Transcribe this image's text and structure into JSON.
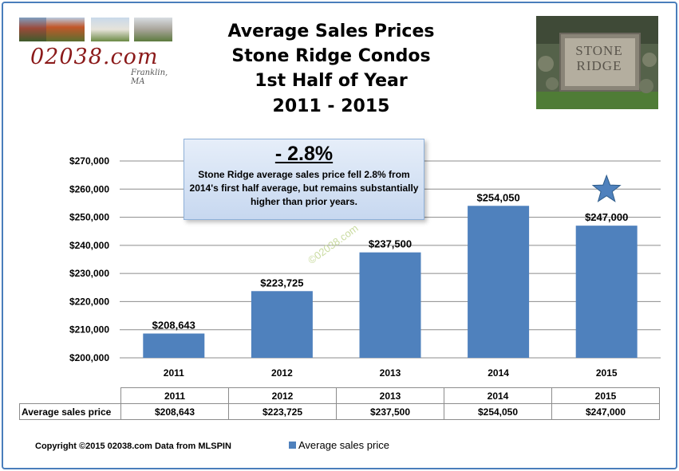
{
  "header": {
    "title_lines": [
      "Average Sales Prices",
      "Stone Ridge Condos",
      "1st Half of Year",
      "2011 - 2015"
    ],
    "logo_text": "02038.com",
    "logo_subtext": "Franklin, MA",
    "photo_sign_text": [
      "STONE",
      "RIDGE"
    ]
  },
  "callout": {
    "headline": "- 2.8%",
    "body": "Stone Ridge average sales price fell 2.8% from 2014's  first half average, but remains substantially higher than prior years."
  },
  "watermark": "©02038.com",
  "chart_data": {
    "type": "bar",
    "title": "Average Sales Prices Stone Ridge Condos 1st Half of Year 2011 - 2015",
    "categories": [
      "2011",
      "2012",
      "2013",
      "2014",
      "2015"
    ],
    "series": [
      {
        "name": "Average sales price",
        "values": [
          208643,
          223725,
          237500,
          254050,
          247000
        ]
      }
    ],
    "data_labels": [
      "$208,643",
      "$223,725",
      "$237,500",
      "$254,050",
      "$247,000"
    ],
    "y_ticks": [
      "$200,000",
      "$210,000",
      "$220,000",
      "$230,000",
      "$240,000",
      "$250,000",
      "$260,000",
      "$270,000"
    ],
    "ylim": [
      200000,
      270000
    ],
    "grid": true,
    "legend_position": "bottom",
    "highlight": {
      "category": "2015",
      "marker": "star"
    },
    "bar_color": "#4f81bd"
  },
  "data_table": {
    "row_label": "Average sales price",
    "values": [
      "$208,643",
      "$223,725",
      "$237,500",
      "$254,050",
      "$247,000"
    ]
  },
  "footer": {
    "copyright": "Copyright ©2015 02038.com Data  from MLSPIN",
    "legend_label": "Average sales price"
  }
}
